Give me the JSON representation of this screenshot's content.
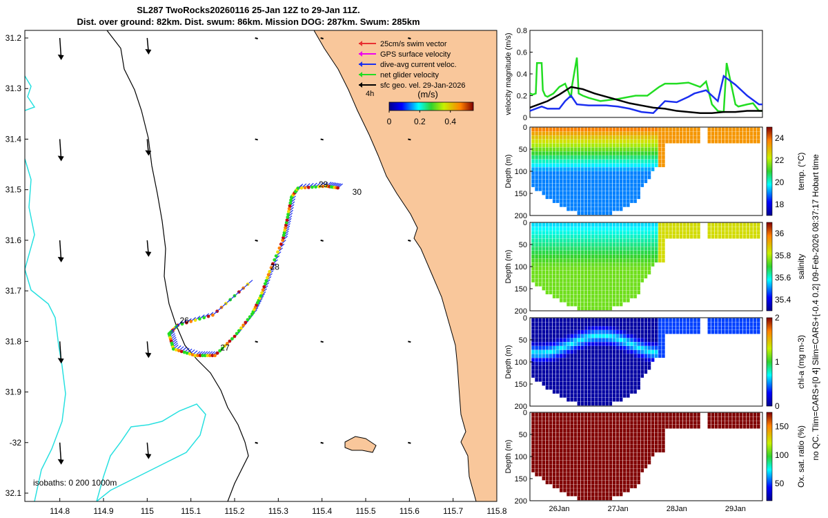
{
  "title_line1": "SL287 TwoRocks20260116 25-Jan 12Z to 29-Jan 11Z.",
  "title_line2": "Dist. over ground: 82km. Dist. swum: 86km. Mission DOG: 287km. Swum: 285km",
  "side_note": "no QC. Tlim=CARS+[0 4] Slim=CARS+[-0.4 0.2] 09-Feb-2026 08:37:17 Hobart time",
  "colors": {
    "land": "#f9c79b",
    "isobath": "#27e0e0",
    "swim": "#e83030",
    "gps": "#ee00ee",
    "current": "#1a2ef0",
    "net": "#22dd22",
    "geo": "#000000"
  },
  "map": {
    "lon_ticks": [
      "114.8",
      "114.9",
      "115",
      "115.1",
      "115.2",
      "115.3",
      "115.4",
      "115.5",
      "115.6",
      "115.7",
      "115.8"
    ],
    "lat_ticks": [
      "31.2",
      "31.3",
      "31.4",
      "31.5",
      "31.6",
      "31.7",
      "31.8",
      "31.9",
      "-32",
      "32.1"
    ],
    "day_labels": [
      {
        "label": "26",
        "lon": 115.085,
        "lat": 31.764
      },
      {
        "label": "27",
        "lon": 115.178,
        "lat": 31.818
      },
      {
        "label": "28",
        "lon": 115.292,
        "lat": 31.658
      },
      {
        "label": "29",
        "lon": 115.403,
        "lat": 31.495
      },
      {
        "label": "30",
        "lon": 115.48,
        "lat": 31.51
      }
    ],
    "isobath_note": "isobaths: 0   200  1000m",
    "legend": {
      "items": [
        {
          "label": "25cm/s swim vector",
          "color": "#e83030"
        },
        {
          "label": "GPS surface velocity",
          "color": "#ee00ee"
        },
        {
          "label": "dive-avg current veloc.",
          "color": "#1a2ef0"
        },
        {
          "label": "net glider velocity",
          "color": "#22dd22"
        },
        {
          "label": "sfc geo. vel. 29-Jan-2026",
          "color": "#000000"
        }
      ],
      "scale_label": "4h",
      "units": "(m/s)",
      "colorbar_ticks": [
        "0",
        "0.2",
        "0.4"
      ]
    }
  },
  "chart_data": [
    {
      "type": "line",
      "title": "",
      "ylabel": "velocity magnitude (m/s)",
      "ylim": [
        0,
        0.8
      ],
      "yticks": [
        "0",
        "0.2",
        "0.4",
        "0.6",
        "0.8"
      ],
      "x_days": [
        25.5,
        29.46
      ],
      "series": [
        {
          "name": "net glider velocity",
          "color": "#22dd22",
          "x": [
            25.5,
            25.55,
            25.6,
            25.62,
            25.7,
            25.72,
            25.76,
            25.8,
            25.9,
            26.0,
            26.1,
            26.2,
            26.22,
            26.3,
            26.33,
            26.4,
            26.5,
            26.7,
            27.0,
            27.3,
            27.5,
            27.7,
            27.8,
            28.0,
            28.2,
            28.4,
            28.5,
            28.6,
            28.7,
            28.8,
            28.85,
            29.0,
            29.05,
            29.2,
            29.3,
            29.4,
            29.46
          ],
          "y": [
            0.22,
            0.21,
            0.22,
            0.5,
            0.5,
            0.25,
            0.2,
            0.19,
            0.22,
            0.28,
            0.31,
            0.18,
            0.3,
            0.55,
            0.22,
            0.2,
            0.18,
            0.15,
            0.17,
            0.2,
            0.2,
            0.28,
            0.31,
            0.31,
            0.32,
            0.28,
            0.33,
            0.12,
            0.06,
            0.05,
            0.5,
            0.12,
            0.1,
            0.12,
            0.13,
            0.06,
            0.06
          ]
        },
        {
          "name": "dive-avg current veloc.",
          "color": "#1a2ef0",
          "x": [
            25.5,
            25.7,
            25.8,
            26.0,
            26.1,
            26.2,
            26.3,
            26.5,
            26.8,
            27.0,
            27.2,
            27.4,
            27.6,
            27.8,
            28.0,
            28.2,
            28.3,
            28.5,
            28.6,
            28.7,
            28.8,
            29.0,
            29.2,
            29.4,
            29.46
          ],
          "y": [
            0.06,
            0.1,
            0.08,
            0.08,
            0.15,
            0.2,
            0.12,
            0.11,
            0.11,
            0.1,
            0.08,
            0.05,
            0.04,
            0.15,
            0.14,
            0.19,
            0.22,
            0.25,
            0.2,
            0.15,
            0.38,
            0.3,
            0.2,
            0.12,
            0.12
          ]
        },
        {
          "name": "sfc geo. vel.",
          "color": "#000000",
          "x": [
            25.5,
            25.8,
            26.0,
            26.2,
            26.4,
            26.6,
            26.8,
            27.0,
            27.2,
            27.4,
            27.6,
            27.8,
            28.0,
            28.2,
            28.4,
            28.6,
            28.8,
            29.0,
            29.2,
            29.4,
            29.46
          ],
          "y": [
            0.09,
            0.15,
            0.21,
            0.28,
            0.26,
            0.22,
            0.19,
            0.16,
            0.13,
            0.11,
            0.09,
            0.08,
            0.06,
            0.05,
            0.04,
            0.04,
            0.05,
            0.05,
            0.06,
            0.06,
            0.06
          ]
        }
      ]
    },
    {
      "type": "heatmap",
      "ylabel": "Depth (m)",
      "ylim": [
        0,
        200
      ],
      "yticks": [
        "0",
        "50",
        "100",
        "150",
        "200"
      ],
      "colorbar_label": "temp. (°C)",
      "colorbar_ticks": [
        "18",
        "20",
        "22",
        "24"
      ],
      "clim": [
        17,
        25
      ],
      "surface_value": 24,
      "deep_value": 19,
      "shelf_value": 23.5
    },
    {
      "type": "heatmap",
      "ylabel": "Depth (m)",
      "ylim": [
        0,
        200
      ],
      "yticks": [
        "0",
        "50",
        "100",
        "150",
        "200"
      ],
      "colorbar_label": "salinity",
      "colorbar_ticks": [
        "35.4",
        "35.6",
        "35.8",
        "36"
      ],
      "clim": [
        35.3,
        36.1
      ],
      "surface_value": 35.55,
      "deep_value": 35.75,
      "shelf_value": 35.85
    },
    {
      "type": "heatmap",
      "ylabel": "Depth (m)",
      "ylim": [
        0,
        200
      ],
      "yticks": [
        "0",
        "50",
        "100",
        "150",
        "200"
      ],
      "colorbar_label": "chl-a (mg m-3)",
      "colorbar_ticks": [
        "0",
        "1",
        "2"
      ],
      "clim": [
        0,
        2
      ],
      "surface_value": 0.1,
      "deep_value": 0.1,
      "shelf_value": 0.4
    },
    {
      "type": "heatmap",
      "ylabel": "Depth (m)",
      "ylim": [
        0,
        200
      ],
      "yticks": [
        "0",
        "50",
        "100",
        "150",
        "200"
      ],
      "colorbar_label": "Ox. sat. ratio (%)",
      "colorbar_ticks": [
        "50",
        "100",
        "150"
      ],
      "clim": [
        20,
        175
      ],
      "surface_value": 175,
      "deep_value": 175,
      "shelf_value": 175,
      "xticks": [
        "26Jan",
        "27Jan",
        "28Jan",
        "29Jan"
      ]
    }
  ]
}
